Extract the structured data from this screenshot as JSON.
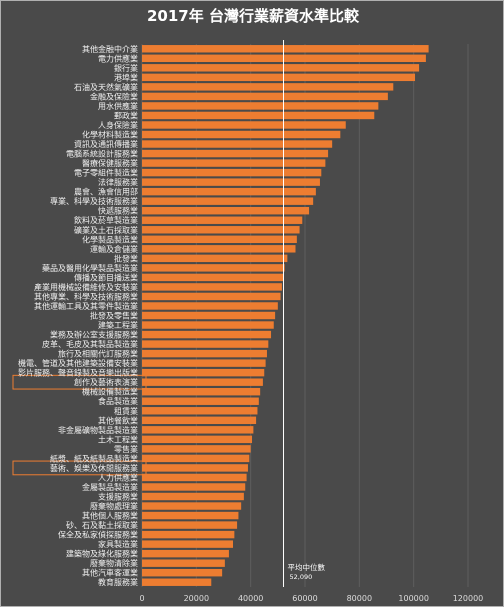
{
  "chart_data": {
    "type": "bar",
    "orientation": "horizontal",
    "title": "2017年 台灣行業薪資水準比較",
    "xlabel": "",
    "ylabel": "",
    "xlim": [
      0,
      120000
    ],
    "xticks": [
      0,
      20000,
      40000,
      60000,
      80000,
      100000,
      120000
    ],
    "grid": true,
    "bar_color": "#ed7d31",
    "highlight_color": "#ed7d31",
    "reference_line": {
      "label": "平均中位數",
      "value_label": "52,090",
      "value": 52090
    },
    "highlighted": [
      "創作及藝術表演業",
      "藝術、娛樂及休閒服務業"
    ],
    "categories": [
      "其他金融中介業",
      "電力供應業",
      "銀行業",
      "港埠業",
      "石油及天然氣礦業",
      "金融及保險業",
      "用水供應業",
      "郵政業",
      "人身保險業",
      "化學材料製造業",
      "資訊及通訊傳播業",
      "電腦系統設計服務業",
      "醫療保健服務業",
      "電子零組件製造業",
      "法律服務業",
      "農會、漁會信用部",
      "專業、科學及技術服務業",
      "快遞服務業",
      "飲料及菸草製造業",
      "礦業及土石採取業",
      "化學製品製造業",
      "運輸及倉儲業",
      "批發業",
      "藥品及醫用化學製品製造業",
      "傳播及節目播送業",
      "產業用機械設備維修及安裝業",
      "其他專業、科學及技術服務業",
      "其他運輸工具及其零件製造業",
      "批發及零售業",
      "建築工程業",
      "業務及辦公室支援服務業",
      "皮革、毛皮及其製品製造業",
      "旅行及相關代訂服務業",
      "機電、管道及其他建築設備安裝業",
      "影片服務、聲音錄製及音樂出版業",
      "創作及藝術表演業",
      "機械設備製造業",
      "食品製造業",
      "租賃業",
      "其他餐飲業",
      "非金屬礦物製品製造業",
      "土木工程業",
      "零售業",
      "紙漿、紙及紙製品製造業",
      "藝術、娛樂及休閒服務業",
      "人力供應業",
      "金屬製品製造業",
      "支援服務業",
      "廢棄物處理業",
      "其他個人服務業",
      "砂、石及黏土採取業",
      "保全及私家偵探服務業",
      "家具製造業",
      "建築物及綠化服務業",
      "廢棄物清除業",
      "其他汽車客運業",
      "教育服務業"
    ],
    "values": [
      105500,
      104500,
      102000,
      100500,
      92500,
      90500,
      87000,
      85500,
      75000,
      73000,
      70000,
      68500,
      67500,
      66000,
      65500,
      64000,
      63000,
      61500,
      59000,
      58000,
      57000,
      56500,
      53500,
      52500,
      52000,
      51500,
      51000,
      50000,
      49000,
      48500,
      47500,
      46500,
      46000,
      45500,
      45000,
      44500,
      43500,
      43000,
      42500,
      42000,
      41000,
      40500,
      40000,
      39500,
      39000,
      38500,
      38000,
      37500,
      36500,
      35500,
      35000,
      34000,
      33500,
      32000,
      30500,
      29500,
      25500
    ]
  }
}
